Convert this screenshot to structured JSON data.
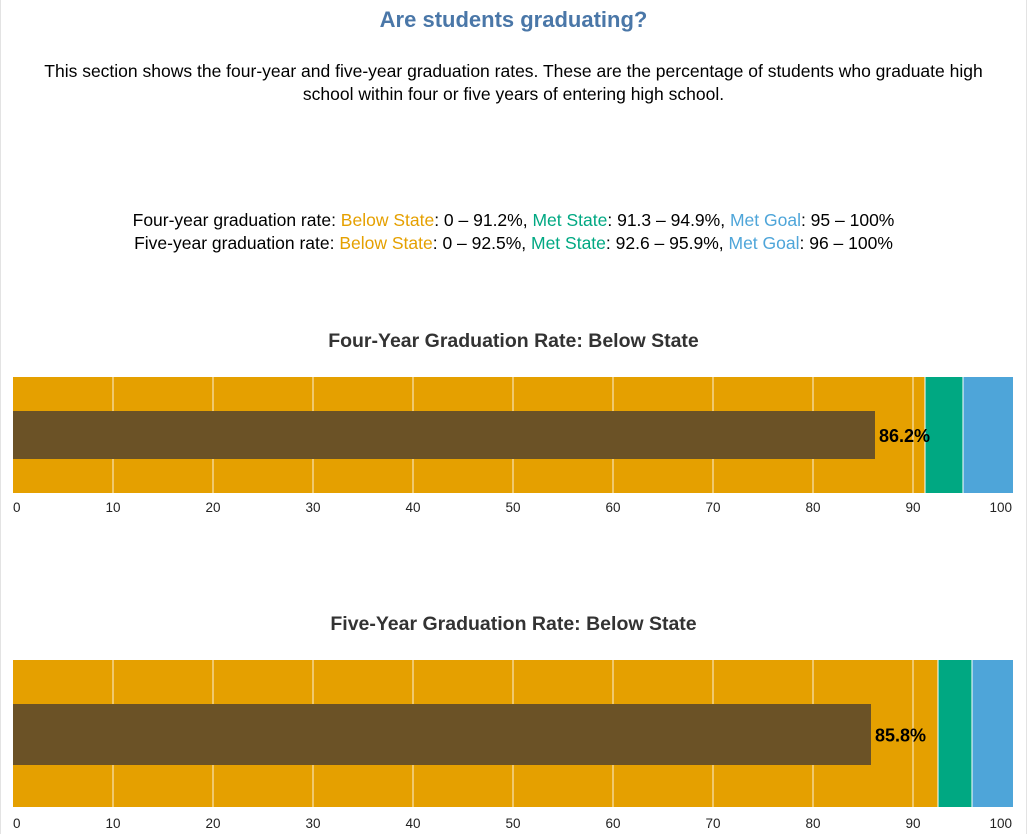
{
  "header": {
    "title": "Are students graduating?",
    "intro": "This section shows the four-year and five-year graduation rates. These are the percentage of students who graduate high school within four or five years of entering high school."
  },
  "legend": {
    "rows": [
      {
        "prefix": "Four-year graduation rate: ",
        "below_label": "Below State",
        "below_range": ": 0 – 91.2%, ",
        "met_label": "Met State",
        "met_range": ": 91.3 – 94.9%, ",
        "goal_label": "Met Goal",
        "goal_range": ": 95 – 100%"
      },
      {
        "prefix": "Five-year graduation rate: ",
        "below_label": "Below State",
        "below_range": ": 0 – 92.5%, ",
        "met_label": "Met State",
        "met_range": ": 92.6 – 95.9%, ",
        "goal_label": "Met Goal",
        "goal_range": ": 96 – 100%"
      }
    ]
  },
  "colors": {
    "below_state": "#e5a000",
    "met_state": "#00a882",
    "met_goal": "#4ea5d9",
    "bar": "#6b5226",
    "gridline": "#ffffff",
    "title": "#4a77a8"
  },
  "chart_data": [
    {
      "type": "bar",
      "orientation": "horizontal",
      "title": "Four-Year Graduation Rate: Below State",
      "value": 86.2,
      "value_label": "86.2%",
      "bands": [
        {
          "name": "Below State",
          "from": 0,
          "to": 91.2
        },
        {
          "name": "Met State",
          "from": 91.2,
          "to": 95
        },
        {
          "name": "Met Goal",
          "from": 95,
          "to": 100
        }
      ],
      "xlim": [
        0,
        100
      ],
      "ticks": [
        0,
        10,
        20,
        30,
        40,
        50,
        60,
        70,
        80,
        90,
        100
      ],
      "grid": true
    },
    {
      "type": "bar",
      "orientation": "horizontal",
      "title": "Five-Year Graduation Rate: Below State",
      "value": 85.8,
      "value_label": "85.8%",
      "bands": [
        {
          "name": "Below State",
          "from": 0,
          "to": 92.5
        },
        {
          "name": "Met State",
          "from": 92.5,
          "to": 95.9
        },
        {
          "name": "Met Goal",
          "from": 95.9,
          "to": 100
        }
      ],
      "xlim": [
        0,
        100
      ],
      "ticks": [
        0,
        10,
        20,
        30,
        40,
        50,
        60,
        70,
        80,
        90,
        100
      ],
      "grid": true
    }
  ]
}
